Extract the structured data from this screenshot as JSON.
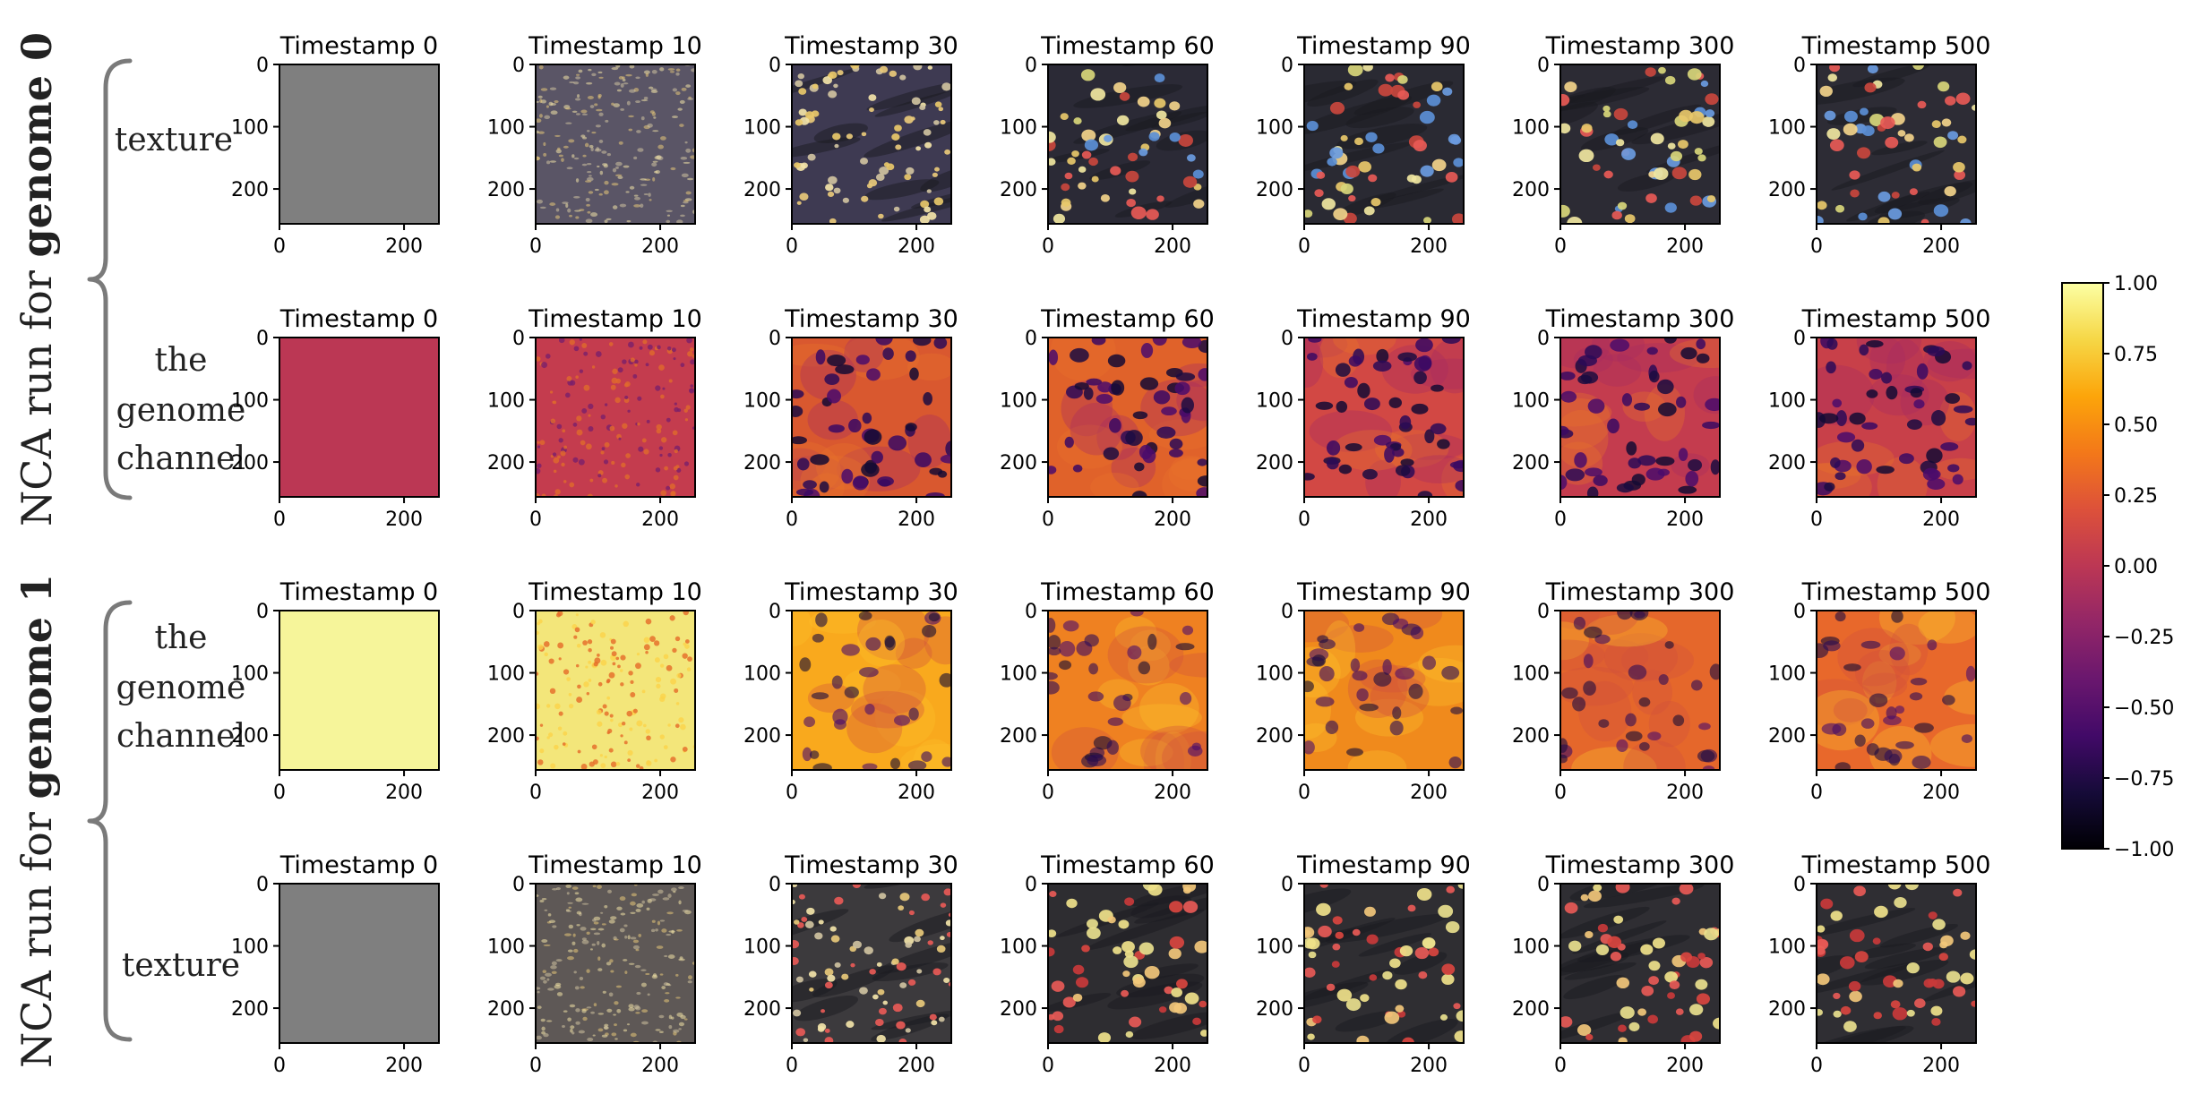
{
  "figure": {
    "colorbar_ticks": [
      "1.00",
      "0.75",
      "0.50",
      "0.25",
      "0.00",
      "−0.25",
      "−0.50",
      "−0.75",
      "−1.00"
    ],
    "colorbar_range": [
      -1.0,
      1.0
    ],
    "colormap": "inferno",
    "groups": [
      {
        "prefix": "NCA run for ",
        "bold": "genome 0"
      },
      {
        "prefix": "NCA run for ",
        "bold": "genome 1"
      }
    ],
    "axis_ticks_y": [
      "0",
      "100",
      "200"
    ],
    "axis_ticks_x": [
      "0",
      "200"
    ],
    "rows": [
      {
        "label_lines": [
          "texture"
        ],
        "kind": "texture",
        "tone": "blue",
        "titles": [
          "Timestamp 0",
          "Timestamp 10",
          "Timestamp 30",
          "Timestamp 60",
          "Timestamp 90",
          "Timestamp 300",
          "Timestamp 500"
        ],
        "base_colors": [
          "#7f7f7f",
          "#5a5566",
          "#3e3a52",
          "#2b2a36",
          "#2a2a33",
          "#2c2b34",
          "#2d2c35"
        ]
      },
      {
        "label_lines": [
          "the",
          "genome",
          "channel"
        ],
        "kind": "genome",
        "titles": [
          "Timestamp 0",
          "Timestamp 10",
          "Timestamp 30",
          "Timestamp 60",
          "Timestamp 90",
          "Timestamp 300",
          "Timestamp 500"
        ],
        "base_colors": [
          "#bb3754",
          "#c43c4e",
          "#d9582f",
          "#e0622a",
          "#d24844",
          "#c43c4e",
          "#c84049"
        ]
      },
      {
        "label_lines": [
          "the",
          "genome",
          "channel"
        ],
        "kind": "genome",
        "titles": [
          "Timestamp 0",
          "Timestamp 10",
          "Timestamp 30",
          "Timestamp 60",
          "Timestamp 90",
          "Timestamp 300",
          "Timestamp 500"
        ],
        "base_colors": [
          "#f6f59a",
          "#f3e67a",
          "#f9a91d",
          "#ef8121",
          "#f08a1c",
          "#e5672b",
          "#e8682b"
        ]
      },
      {
        "label_lines": [
          "texture"
        ],
        "kind": "texture",
        "tone": "red",
        "titles": [
          "Timestamp 0",
          "Timestamp 10",
          "Timestamp 30",
          "Timestamp 60",
          "Timestamp 90",
          "Timestamp 300",
          "Timestamp 500"
        ],
        "base_colors": [
          "#7f7f7f",
          "#5e5856",
          "#3c3a3d",
          "#2e2d31",
          "#2f2e32",
          "#2f2e33",
          "#2f2e33"
        ]
      }
    ]
  }
}
